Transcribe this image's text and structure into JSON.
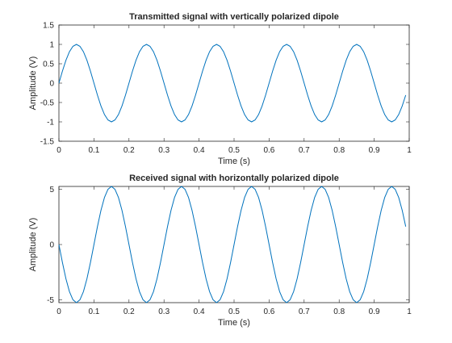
{
  "chart_data": [
    {
      "type": "line",
      "title": "Transmitted signal with vertically polarized dipole",
      "xlabel": "Time (s)",
      "ylabel": "Amplitude (V)",
      "xlim": [
        0,
        1
      ],
      "ylim": [
        -1.5,
        1.5
      ],
      "xticks": [
        "0",
        "0.1",
        "0.2",
        "0.3",
        "0.4",
        "0.5",
        "0.6",
        "0.7",
        "0.8",
        "0.9",
        "1"
      ],
      "yticks": [
        "-1.5",
        "-1",
        "-0.5",
        "0",
        "0.5",
        "1",
        "1.5"
      ],
      "grid": false,
      "series": [
        {
          "color": "#0072bd",
          "x": [
            0,
            0.01,
            0.02,
            0.03,
            0.04,
            0.05,
            0.06,
            0.07,
            0.08,
            0.09,
            0.1,
            0.11,
            0.12,
            0.13,
            0.14,
            0.15,
            0.16,
            0.17,
            0.18,
            0.19,
            0.2,
            0.21,
            0.22,
            0.23,
            0.24,
            0.25,
            0.26,
            0.27,
            0.28,
            0.29,
            0.3,
            0.31,
            0.32,
            0.33,
            0.34,
            0.35,
            0.36,
            0.37,
            0.38,
            0.39,
            0.4,
            0.41,
            0.42,
            0.43,
            0.44,
            0.45,
            0.46,
            0.47,
            0.48,
            0.49,
            0.5,
            0.51,
            0.52,
            0.53,
            0.54,
            0.55,
            0.56,
            0.57,
            0.58,
            0.59,
            0.6,
            0.61,
            0.62,
            0.63,
            0.64,
            0.65,
            0.66,
            0.67,
            0.68,
            0.69,
            0.7,
            0.71,
            0.72,
            0.73,
            0.74,
            0.75,
            0.76,
            0.77,
            0.78,
            0.79,
            0.8,
            0.81,
            0.82,
            0.83,
            0.84,
            0.85,
            0.86,
            0.87,
            0.88,
            0.89,
            0.9,
            0.91,
            0.92,
            0.93,
            0.94,
            0.95,
            0.96,
            0.97,
            0.98,
            0.99
          ],
          "y": [
            0,
            0.31,
            0.59,
            0.81,
            0.95,
            1,
            0.95,
            0.81,
            0.59,
            0.31,
            0,
            -0.31,
            -0.59,
            -0.81,
            -0.95,
            -1,
            -0.95,
            -0.81,
            -0.59,
            -0.31,
            0,
            0.31,
            0.59,
            0.81,
            0.95,
            1,
            0.95,
            0.81,
            0.59,
            0.31,
            0,
            -0.31,
            -0.59,
            -0.81,
            -0.95,
            -1,
            -0.95,
            -0.81,
            -0.59,
            -0.31,
            0,
            0.31,
            0.59,
            0.81,
            0.95,
            1,
            0.95,
            0.81,
            0.59,
            0.31,
            0,
            -0.31,
            -0.59,
            -0.81,
            -0.95,
            -1,
            -0.95,
            -0.81,
            -0.59,
            -0.31,
            0,
            0.31,
            0.59,
            0.81,
            0.95,
            1,
            0.95,
            0.81,
            0.59,
            0.31,
            0,
            -0.31,
            -0.59,
            -0.81,
            -0.95,
            -1,
            -0.95,
            -0.81,
            -0.59,
            -0.31,
            0,
            0.31,
            0.59,
            0.81,
            0.95,
            1,
            0.95,
            0.81,
            0.59,
            0.31,
            0,
            -0.31,
            -0.59,
            -0.81,
            -0.95,
            -1,
            -0.95,
            -0.81,
            -0.59,
            -0.31
          ]
        }
      ]
    },
    {
      "type": "line",
      "title": "Received signal with horizontally polarized dipole",
      "xlabel": "Time (s)",
      "ylabel": "Amplitude (V)",
      "xlim": [
        0,
        1
      ],
      "ylim": [
        -5.25,
        5.25
      ],
      "xticks": [
        "0",
        "0.1",
        "0.2",
        "0.3",
        "0.4",
        "0.5",
        "0.6",
        "0.7",
        "0.8",
        "0.9",
        "1"
      ],
      "yticks": [
        "-5",
        "0",
        "5"
      ],
      "grid": false,
      "series": [
        {
          "color": "#0072bd",
          "x": [
            0,
            0.01,
            0.02,
            0.03,
            0.04,
            0.05,
            0.06,
            0.07,
            0.08,
            0.09,
            0.1,
            0.11,
            0.12,
            0.13,
            0.14,
            0.15,
            0.16,
            0.17,
            0.18,
            0.19,
            0.2,
            0.21,
            0.22,
            0.23,
            0.24,
            0.25,
            0.26,
            0.27,
            0.28,
            0.29,
            0.3,
            0.31,
            0.32,
            0.33,
            0.34,
            0.35,
            0.36,
            0.37,
            0.38,
            0.39,
            0.4,
            0.41,
            0.42,
            0.43,
            0.44,
            0.45,
            0.46,
            0.47,
            0.48,
            0.49,
            0.5,
            0.51,
            0.52,
            0.53,
            0.54,
            0.55,
            0.56,
            0.57,
            0.58,
            0.59,
            0.6,
            0.61,
            0.62,
            0.63,
            0.64,
            0.65,
            0.66,
            0.67,
            0.68,
            0.69,
            0.7,
            0.71,
            0.72,
            0.73,
            0.74,
            0.75,
            0.76,
            0.77,
            0.78,
            0.79,
            0.8,
            0.81,
            0.82,
            0.83,
            0.84,
            0.85,
            0.86,
            0.87,
            0.88,
            0.89,
            0.9,
            0.91,
            0.92,
            0.93,
            0.94,
            0.95,
            0.96,
            0.97,
            0.98,
            0.99
          ],
          "y": [
            0,
            -1.62,
            -3.09,
            -4.25,
            -4.99,
            -5.25,
            -4.99,
            -4.25,
            -3.09,
            -1.62,
            0,
            1.62,
            3.09,
            4.25,
            4.99,
            5.25,
            4.99,
            4.25,
            3.09,
            1.62,
            0,
            -1.62,
            -3.09,
            -4.25,
            -4.99,
            -5.25,
            -4.99,
            -4.25,
            -3.09,
            -1.62,
            0,
            1.62,
            3.09,
            4.25,
            4.99,
            5.25,
            4.99,
            4.25,
            3.09,
            1.62,
            0,
            -1.62,
            -3.09,
            -4.25,
            -4.99,
            -5.25,
            -4.99,
            -4.25,
            -3.09,
            -1.62,
            0,
            1.62,
            3.09,
            4.25,
            4.99,
            5.25,
            4.99,
            4.25,
            3.09,
            1.62,
            0,
            -1.62,
            -3.09,
            -4.25,
            -4.99,
            -5.25,
            -4.99,
            -4.25,
            -3.09,
            -1.62,
            0,
            1.62,
            3.09,
            4.25,
            4.99,
            5.25,
            4.99,
            4.25,
            3.09,
            1.62,
            0,
            -1.62,
            -3.09,
            -4.25,
            -4.99,
            -5.25,
            -4.99,
            -4.25,
            -3.09,
            -1.62,
            0,
            1.62,
            3.09,
            4.25,
            4.99,
            5.25,
            4.99,
            4.25,
            3.09,
            1.62
          ]
        }
      ]
    }
  ]
}
